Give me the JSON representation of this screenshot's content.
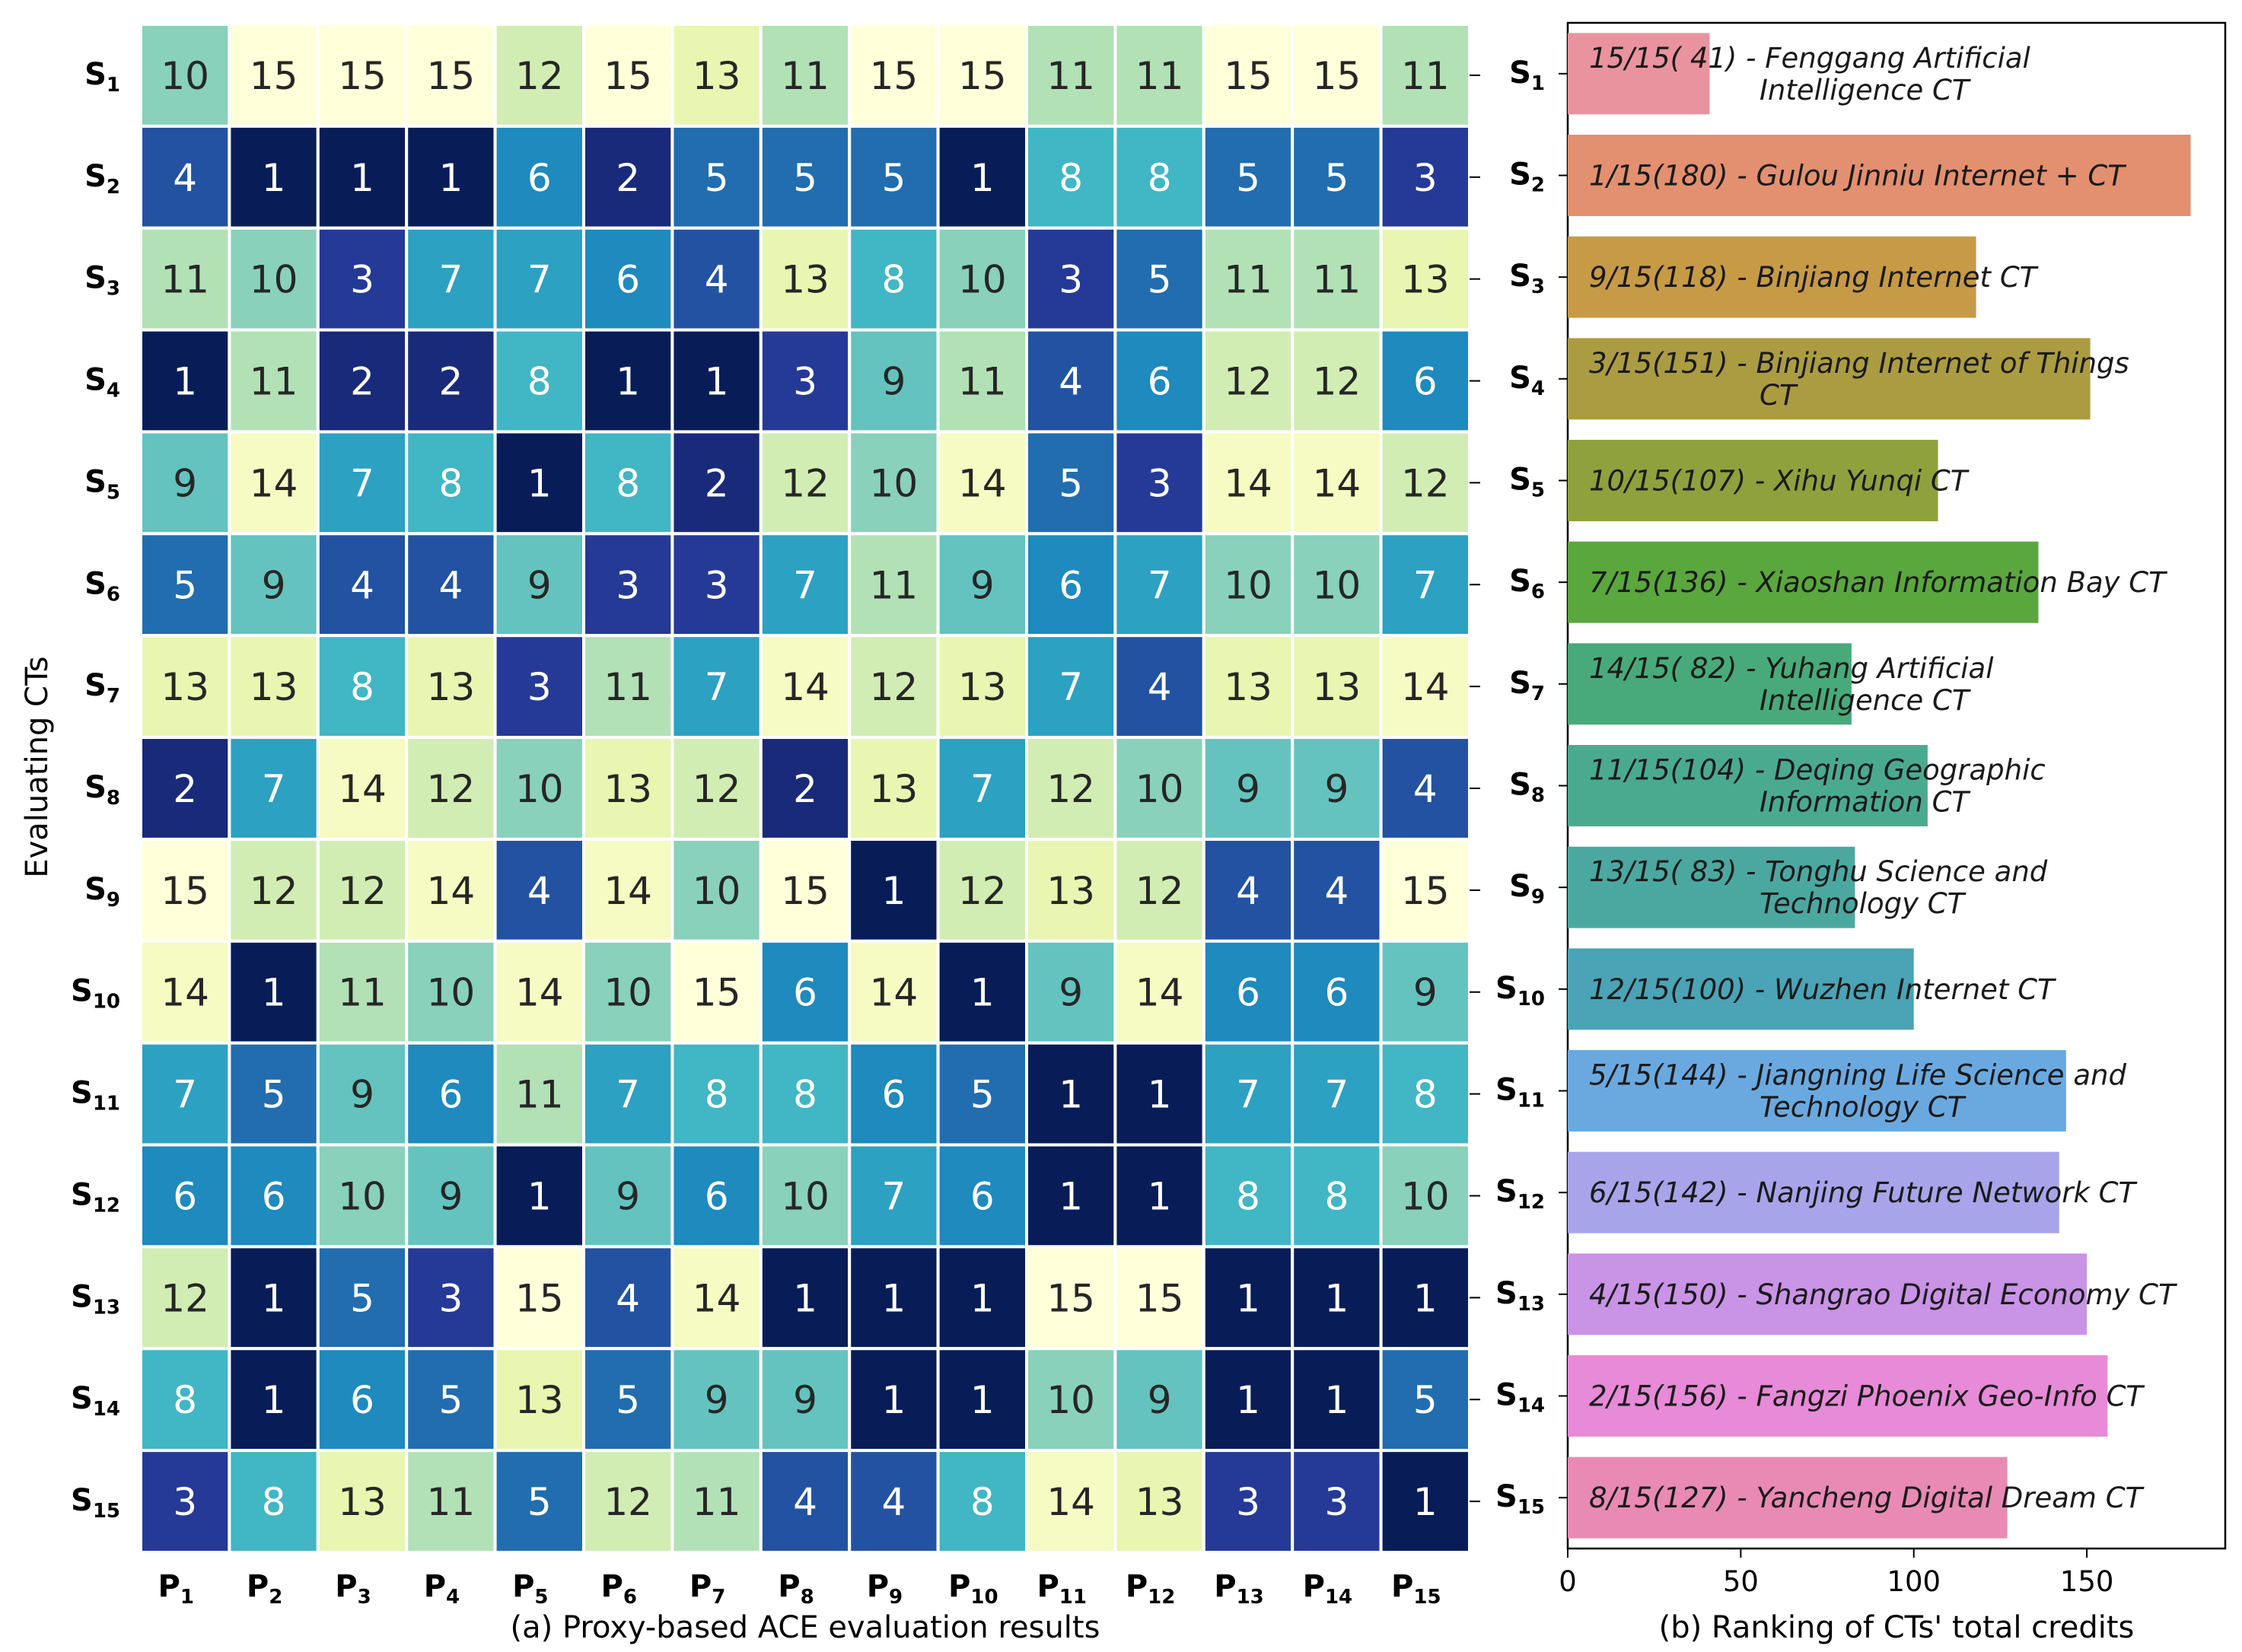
{
  "chart_data": [
    {
      "type": "heatmap",
      "title": "",
      "xlabel": "(a) Proxy-based ACE evaluation results",
      "ylabel": "Evaluating CTs",
      "colormap": "YlGnBu_r",
      "value_range": [
        1,
        15
      ],
      "rows": [
        {
          "letter": "S",
          "sub": "1"
        },
        {
          "letter": "S",
          "sub": "2"
        },
        {
          "letter": "S",
          "sub": "3"
        },
        {
          "letter": "S",
          "sub": "4"
        },
        {
          "letter": "S",
          "sub": "5"
        },
        {
          "letter": "S",
          "sub": "6"
        },
        {
          "letter": "S",
          "sub": "7"
        },
        {
          "letter": "S",
          "sub": "8"
        },
        {
          "letter": "S",
          "sub": "9"
        },
        {
          "letter": "S",
          "sub": "10"
        },
        {
          "letter": "S",
          "sub": "11"
        },
        {
          "letter": "S",
          "sub": "12"
        },
        {
          "letter": "S",
          "sub": "13"
        },
        {
          "letter": "S",
          "sub": "14"
        },
        {
          "letter": "S",
          "sub": "15"
        }
      ],
      "columns": [
        {
          "letter": "P",
          "sub": "1"
        },
        {
          "letter": "P",
          "sub": "2"
        },
        {
          "letter": "P",
          "sub": "3"
        },
        {
          "letter": "P",
          "sub": "4"
        },
        {
          "letter": "P",
          "sub": "5"
        },
        {
          "letter": "P",
          "sub": "6"
        },
        {
          "letter": "P",
          "sub": "7"
        },
        {
          "letter": "P",
          "sub": "8"
        },
        {
          "letter": "P",
          "sub": "9"
        },
        {
          "letter": "P",
          "sub": "10"
        },
        {
          "letter": "P",
          "sub": "11"
        },
        {
          "letter": "P",
          "sub": "12"
        },
        {
          "letter": "P",
          "sub": "13"
        },
        {
          "letter": "P",
          "sub": "14"
        },
        {
          "letter": "P",
          "sub": "15"
        }
      ],
      "values": [
        [
          10,
          15,
          15,
          15,
          12,
          15,
          13,
          11,
          15,
          15,
          11,
          11,
          15,
          15,
          11
        ],
        [
          4,
          1,
          1,
          1,
          6,
          2,
          5,
          5,
          5,
          1,
          8,
          8,
          5,
          5,
          3
        ],
        [
          11,
          10,
          3,
          7,
          7,
          6,
          4,
          13,
          8,
          10,
          3,
          5,
          11,
          11,
          13
        ],
        [
          1,
          11,
          2,
          2,
          8,
          1,
          1,
          3,
          9,
          11,
          4,
          6,
          12,
          12,
          6
        ],
        [
          9,
          14,
          7,
          8,
          1,
          8,
          2,
          12,
          10,
          14,
          5,
          3,
          14,
          14,
          12
        ],
        [
          5,
          9,
          4,
          4,
          9,
          3,
          3,
          7,
          11,
          9,
          6,
          7,
          10,
          10,
          7
        ],
        [
          13,
          13,
          8,
          13,
          3,
          11,
          7,
          14,
          12,
          13,
          7,
          4,
          13,
          13,
          14
        ],
        [
          2,
          7,
          14,
          12,
          10,
          13,
          12,
          2,
          13,
          7,
          12,
          10,
          9,
          9,
          4
        ],
        [
          15,
          12,
          12,
          14,
          4,
          14,
          10,
          15,
          1,
          12,
          13,
          12,
          4,
          4,
          15
        ],
        [
          14,
          1,
          11,
          10,
          14,
          10,
          15,
          6,
          14,
          1,
          9,
          14,
          6,
          6,
          9
        ],
        [
          7,
          5,
          9,
          6,
          11,
          7,
          8,
          8,
          6,
          5,
          1,
          1,
          7,
          7,
          8
        ],
        [
          6,
          6,
          10,
          9,
          1,
          9,
          6,
          10,
          7,
          6,
          1,
          1,
          8,
          8,
          10
        ],
        [
          12,
          1,
          5,
          3,
          15,
          4,
          14,
          1,
          1,
          1,
          15,
          15,
          1,
          1,
          1
        ],
        [
          8,
          1,
          6,
          5,
          13,
          5,
          9,
          9,
          1,
          1,
          10,
          9,
          1,
          1,
          5
        ],
        [
          3,
          8,
          13,
          11,
          5,
          12,
          11,
          4,
          4,
          8,
          14,
          13,
          3,
          3,
          1
        ]
      ]
    },
    {
      "type": "bar",
      "orientation": "horizontal",
      "title": "",
      "xlabel": "(b) Ranking of CTs' total credits",
      "ylabel": "",
      "xlim": [
        0,
        190
      ],
      "xticks": [
        0,
        50,
        100,
        150
      ],
      "categories": [
        {
          "letter": "S",
          "sub": "1"
        },
        {
          "letter": "S",
          "sub": "2"
        },
        {
          "letter": "S",
          "sub": "3"
        },
        {
          "letter": "S",
          "sub": "4"
        },
        {
          "letter": "S",
          "sub": "5"
        },
        {
          "letter": "S",
          "sub": "6"
        },
        {
          "letter": "S",
          "sub": "7"
        },
        {
          "letter": "S",
          "sub": "8"
        },
        {
          "letter": "S",
          "sub": "9"
        },
        {
          "letter": "S",
          "sub": "10"
        },
        {
          "letter": "S",
          "sub": "11"
        },
        {
          "letter": "S",
          "sub": "12"
        },
        {
          "letter": "S",
          "sub": "13"
        },
        {
          "letter": "S",
          "sub": "14"
        },
        {
          "letter": "S",
          "sub": "15"
        }
      ],
      "values": [
        41,
        180,
        118,
        151,
        107,
        136,
        82,
        104,
        83,
        100,
        144,
        142,
        150,
        156,
        127
      ],
      "colors": [
        "#e9939e",
        "#e2906f",
        "#c79a46",
        "#ab9c42",
        "#8fa13d",
        "#5aa73d",
        "#48aa7a",
        "#4aaa90",
        "#4ba8a0",
        "#4aa4b6",
        "#6aa9e0",
        "#a7a4ea",
        "#c993e6",
        "#e78ad8",
        "#e88ab4"
      ],
      "labels": [
        [
          "15/15( 41) - Fenggang Artificial",
          "Intelligence CT"
        ],
        [
          "1/15(180) - Gulou Jinniu Internet + CT"
        ],
        [
          "9/15(118) - Binjiang Internet CT"
        ],
        [
          "3/15(151) - Binjiang Internet of Things",
          "CT"
        ],
        [
          "10/15(107) - Xihu Yunqi CT"
        ],
        [
          "7/15(136) - Xiaoshan Information Bay CT"
        ],
        [
          "14/15( 82) - Yuhang Artificial",
          "Intelligence CT"
        ],
        [
          "11/15(104) - Deqing Geographic",
          "Information CT"
        ],
        [
          "13/15( 83) - Tonghu Science and",
          "Technology CT"
        ],
        [
          "12/15(100) - Wuzhen Internet CT"
        ],
        [
          "5/15(144) - Jiangning Life Science and",
          "Technology CT"
        ],
        [
          "6/15(142) - Nanjing Future Network CT"
        ],
        [
          "4/15(150) - Shangrao Digital Economy CT"
        ],
        [
          "2/15(156) - Fangzi Phoenix Geo-Info CT"
        ],
        [
          "8/15(127) - Yancheng Digital Dream CT"
        ]
      ]
    }
  ]
}
